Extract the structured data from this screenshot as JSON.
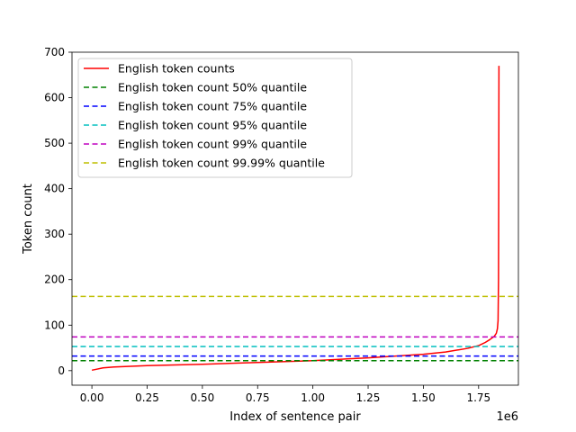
{
  "chart_data": {
    "type": "line",
    "title": "",
    "xlabel": "Index of sentence pair",
    "ylabel": "Token count",
    "x_offset_label": "1e6",
    "xlim": [
      -90000,
      1930000
    ],
    "ylim": [
      -32,
      700
    ],
    "x_ticks": [
      0,
      250000,
      500000,
      750000,
      1000000,
      1250000,
      1500000,
      1750000
    ],
    "x_tick_labels": [
      "0.00",
      "0.25",
      "0.50",
      "0.75",
      "1.00",
      "1.25",
      "1.50",
      "1.75"
    ],
    "y_ticks": [
      0,
      100,
      200,
      300,
      400,
      500,
      600,
      700
    ],
    "y_tick_labels": [
      "0",
      "100",
      "200",
      "300",
      "400",
      "500",
      "600",
      "700"
    ],
    "grid": false,
    "legend_position": "top-left",
    "series": [
      {
        "name": "English token counts",
        "color": "#ff0000",
        "style": "solid",
        "x": [
          0,
          20000,
          50000,
          100000,
          250000,
          500000,
          750000,
          1000000,
          1250000,
          1500000,
          1600000,
          1700000,
          1750000,
          1780000,
          1800000,
          1820000,
          1830000,
          1835000,
          1838000,
          1840000,
          1841000,
          1842000
        ],
        "y": [
          1,
          3,
          6,
          8,
          11,
          14,
          18,
          22,
          28,
          36,
          41,
          49,
          55,
          62,
          68,
          75,
          82,
          92,
          110,
          200,
          400,
          670
        ]
      },
      {
        "name": "English token count 50% quantile",
        "color": "#008000",
        "style": "dashed",
        "value": 22
      },
      {
        "name": "English token count 75% quantile",
        "color": "#0000ff",
        "style": "dashed",
        "value": 32
      },
      {
        "name": "English token count 95% quantile",
        "color": "#00bfbf",
        "style": "dashed",
        "value": 53
      },
      {
        "name": "English token count 99% quantile",
        "color": "#bf00bf",
        "style": "dashed",
        "value": 74
      },
      {
        "name": "English token count 99.99% quantile",
        "color": "#bfbf00",
        "style": "dashed",
        "value": 163
      }
    ]
  }
}
